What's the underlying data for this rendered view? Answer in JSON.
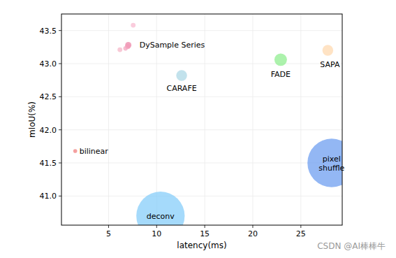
{
  "chart_data": {
    "type": "scatter",
    "x_label": "latency(ms)",
    "y_label": "mIoU(%)",
    "xlim": [
      0.1,
      29.3
    ],
    "ylim": [
      40.56,
      43.75
    ],
    "xticks": [
      5,
      10,
      15,
      20,
      25
    ],
    "yticks": [
      {
        "value": 41,
        "label": "41.0"
      },
      41.5,
      {
        "value": 42,
        "label": "42.0"
      },
      42.5,
      {
        "value": 43,
        "label": "43.0"
      },
      43.5
    ],
    "grid": true,
    "series": [
      {
        "name": "bilinear",
        "color": "#f08080",
        "x": [
          1.53
        ],
        "values": [
          41.68
        ],
        "sizes": [
          8
        ]
      },
      {
        "name": "DySample Series",
        "color": "#f48fb1",
        "colors": [
          "#f8bbd0",
          "#ec87a8",
          "#f29bb8",
          "#f5b7c8",
          "#f3a6bf"
        ],
        "x": [
          7.56,
          7.05,
          7.0,
          6.18,
          6.76
        ],
        "values": [
          43.58,
          43.28,
          43.26,
          43.21,
          43.23
        ],
        "sizes": [
          12,
          20,
          14,
          12,
          10
        ]
      },
      {
        "name": "CARAFE",
        "color": "#add8e6",
        "x": [
          12.6
        ],
        "values": [
          42.82
        ],
        "sizes": [
          60
        ]
      },
      {
        "name": "FADE",
        "color": "#90ee90",
        "x": [
          22.9
        ],
        "values": [
          43.06
        ],
        "sizes": [
          80
        ]
      },
      {
        "name": "SAPA",
        "color": "#ffdab0",
        "x": [
          27.8
        ],
        "values": [
          43.2
        ],
        "sizes": [
          60
        ]
      },
      {
        "name": "deconv",
        "color": "#87cefa",
        "x": [
          10.4
        ],
        "values": [
          40.7
        ],
        "sizes": [
          1200
        ]
      },
      {
        "name": "pixel shuffle",
        "color": "#6f9ff0",
        "x": [
          28.2
        ],
        "values": [
          41.5
        ],
        "sizes": [
          1200
        ]
      }
    ]
  },
  "watermark": "CSDN @AI棒棒牛"
}
